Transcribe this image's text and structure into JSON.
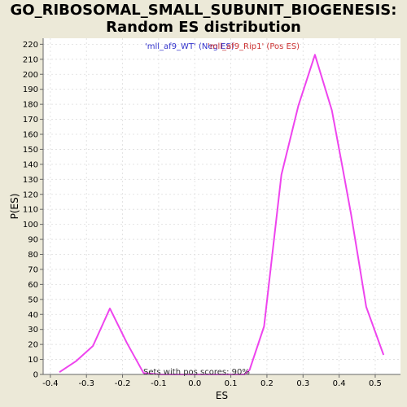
{
  "chart_data": {
    "type": "line",
    "title_lines": [
      "GO_RIBOSOMAL_SMALL_SUBUNIT_BIOGENESIS:",
      "Random ES distribution"
    ],
    "xlabel": "ES",
    "ylabel": "P(ES)",
    "xlim": [
      -0.42,
      0.57
    ],
    "ylim": [
      0,
      224
    ],
    "x_ticks": [
      -0.4,
      -0.3,
      -0.2,
      -0.1,
      0.0,
      0.1,
      0.2,
      0.3,
      0.4,
      0.5
    ],
    "x_tick_labels": [
      "-0.4",
      "-0.3",
      "-0.2",
      "-0.1",
      "0.0",
      "0.1",
      "0.2",
      "0.3",
      "0.4",
      "0.5"
    ],
    "y_ticks": [
      0,
      10,
      20,
      30,
      40,
      50,
      60,
      70,
      80,
      90,
      100,
      110,
      120,
      130,
      140,
      150,
      160,
      170,
      180,
      190,
      200,
      210,
      220
    ],
    "grid": true,
    "legend": [
      {
        "label": "'mll_af9_WT' (Neg ES)",
        "color": "#3333CC"
      },
      {
        "label": "'mll_af9_Rip1' (Pos ES)",
        "color": "#CC3333"
      }
    ],
    "annotation": "Sets with pos scores: 90%",
    "series": [
      {
        "color": "#EE44EE",
        "x": [
          -0.375,
          -0.328,
          -0.282,
          -0.235,
          -0.188,
          -0.142,
          -0.095,
          -0.048,
          -0.002,
          0.045,
          0.092,
          0.138,
          0.152,
          0.192,
          0.24,
          0.287,
          0.333,
          0.38,
          0.41,
          0.433,
          0.475,
          0.523
        ],
        "y": [
          1.5,
          9,
          19,
          44,
          21,
          1,
          0,
          0,
          0,
          0,
          0,
          0,
          3,
          32,
          133,
          179,
          213,
          176,
          137,
          107,
          45,
          13
        ]
      }
    ]
  }
}
